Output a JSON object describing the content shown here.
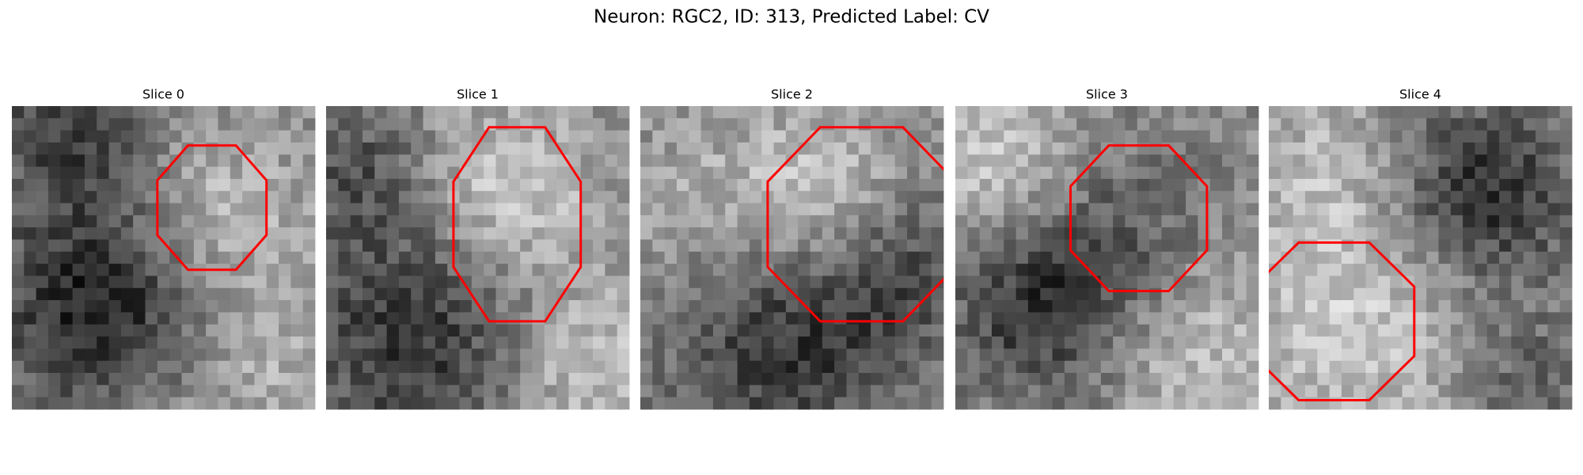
{
  "title": "Neuron: RGC2, ID: 313, Predicted Label: CV",
  "panels": [
    {
      "title": "Slice 0"
    },
    {
      "title": "Slice 1"
    },
    {
      "title": "Slice 2"
    },
    {
      "title": "Slice 3"
    },
    {
      "title": "Slice 4"
    }
  ]
}
